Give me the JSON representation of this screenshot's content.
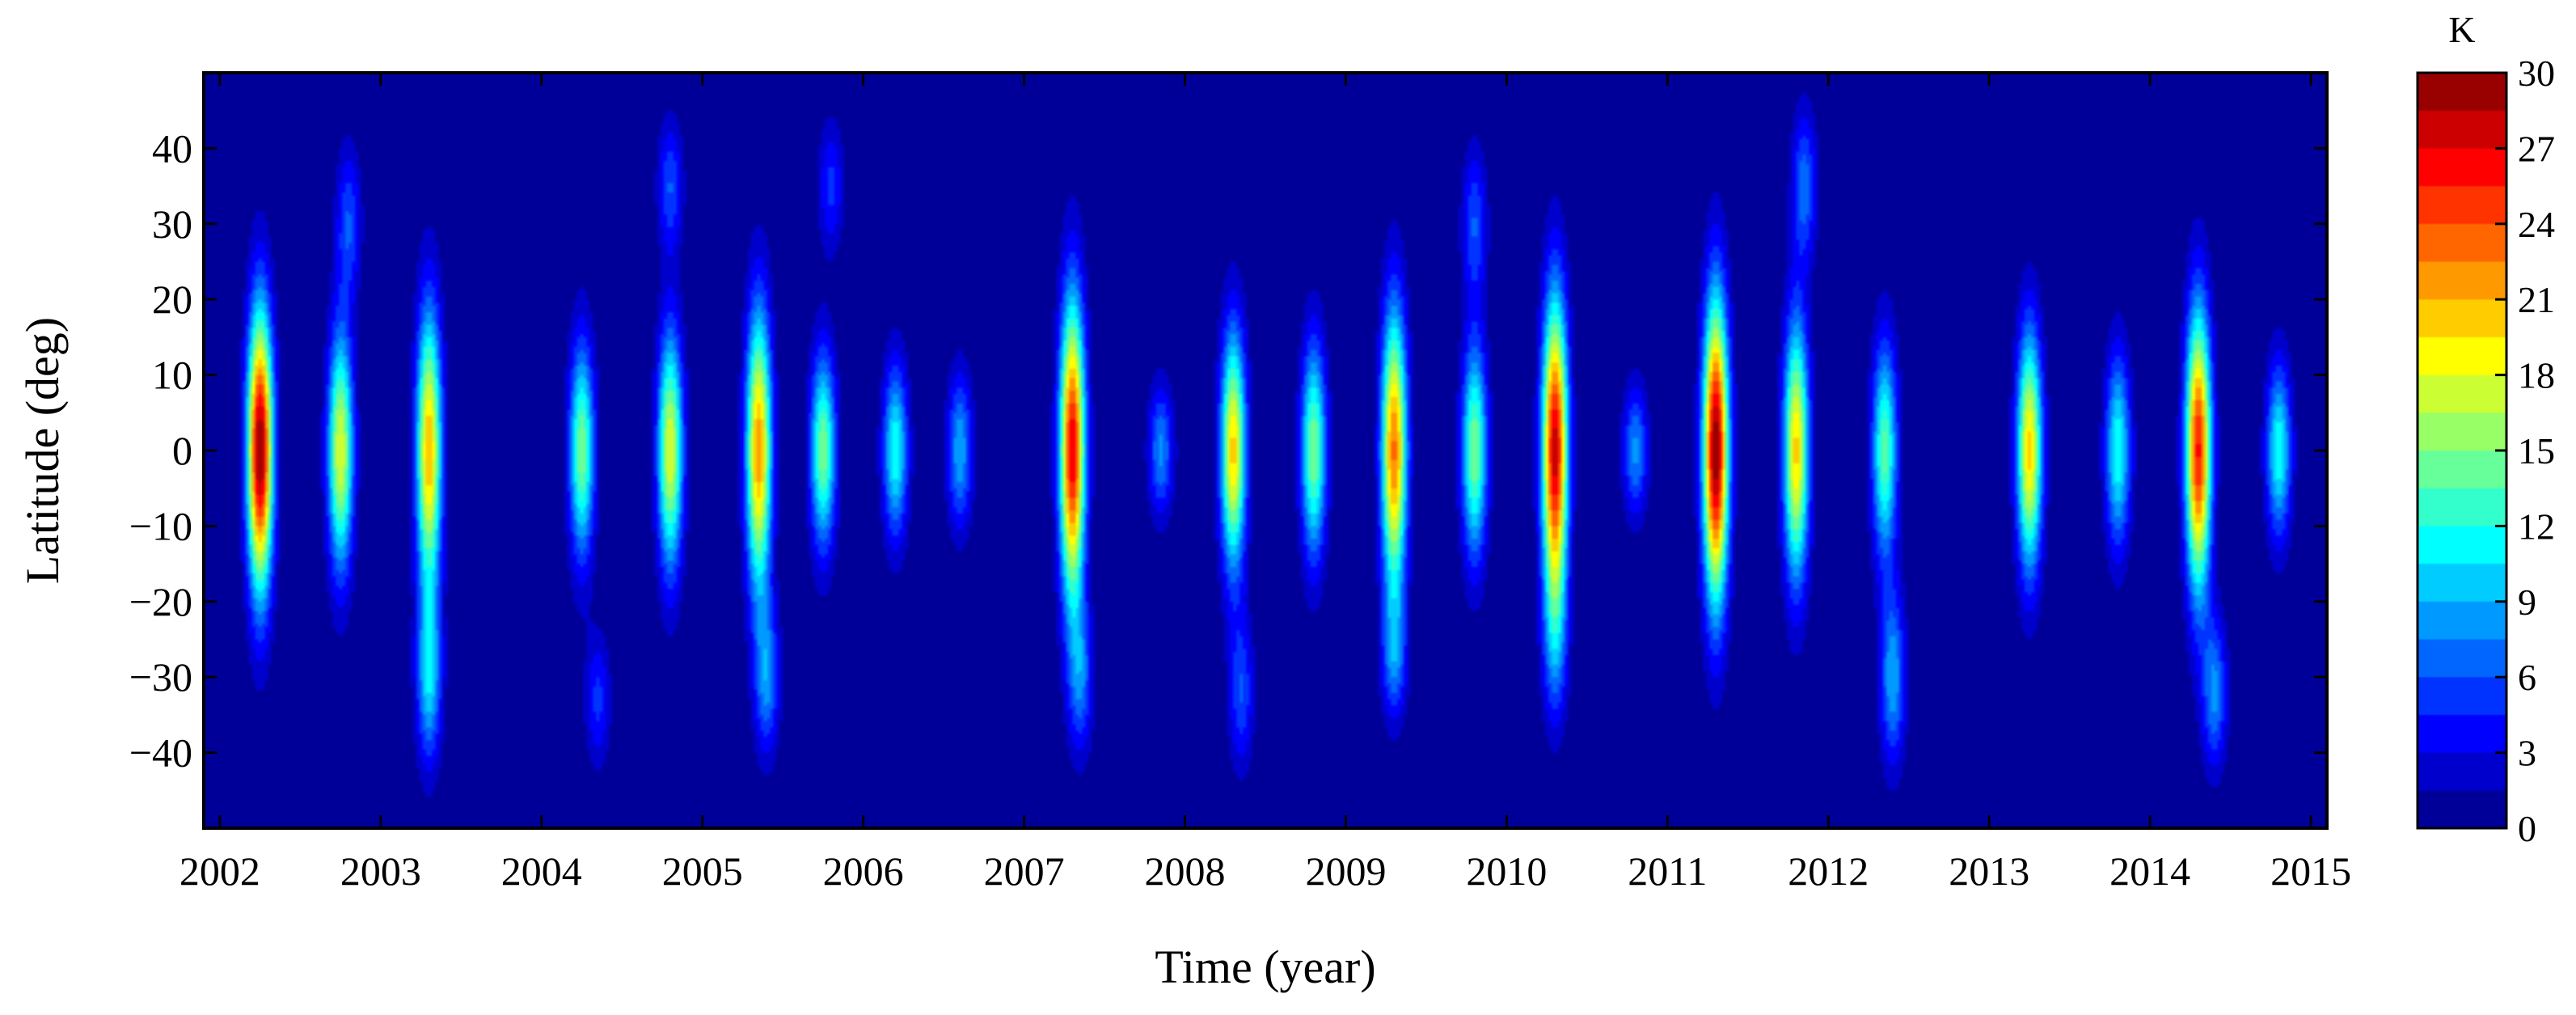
{
  "chart_data": {
    "type": "heatmap",
    "title": "",
    "xlabel": "Time (year)",
    "ylabel": "Latitude (deg)",
    "xlim": [
      2001.9,
      2015.1
    ],
    "ylim": [
      -50,
      50
    ],
    "xticks": [
      "2002",
      "2003",
      "2004",
      "2005",
      "2006",
      "2007",
      "2008",
      "2009",
      "2010",
      "2011",
      "2012",
      "2013",
      "2014",
      "2015"
    ],
    "yticks": [
      "40",
      "30",
      "20",
      "10",
      "0",
      "−10",
      "−20",
      "−30",
      "−40"
    ],
    "colorbar": {
      "label": "K",
      "range": [
        0,
        30
      ],
      "ticks": [
        "30",
        "27",
        "24",
        "21",
        "18",
        "15",
        "12",
        "9",
        "6",
        "3",
        "0"
      ],
      "colormap": "jet",
      "contour_step": 1.5
    },
    "peaks": [
      {
        "time": 2002.25,
        "lat": 0,
        "value": 30,
        "lat_halfwidth": 13
      },
      {
        "time": 2002.75,
        "lat": 0,
        "value": 18,
        "lat_halfwidth": 11
      },
      {
        "time": 2003.3,
        "lat": 0,
        "value": 21,
        "lat_halfwidth": 13
      },
      {
        "time": 2004.25,
        "lat": 0,
        "value": 15,
        "lat_halfwidth": 10
      },
      {
        "time": 2004.8,
        "lat": 0,
        "value": 18,
        "lat_halfwidth": 11
      },
      {
        "time": 2005.35,
        "lat": 0,
        "value": 22,
        "lat_halfwidth": 13
      },
      {
        "time": 2005.75,
        "lat": 0,
        "value": 15,
        "lat_halfwidth": 9
      },
      {
        "time": 2006.2,
        "lat": 0,
        "value": 12,
        "lat_halfwidth": 8
      },
      {
        "time": 2006.6,
        "lat": 0,
        "value": 9,
        "lat_halfwidth": 7
      },
      {
        "time": 2007.3,
        "lat": 0,
        "value": 27,
        "lat_halfwidth": 14
      },
      {
        "time": 2007.85,
        "lat": 0,
        "value": 8,
        "lat_halfwidth": 6
      },
      {
        "time": 2008.3,
        "lat": 0,
        "value": 20,
        "lat_halfwidth": 11
      },
      {
        "time": 2008.8,
        "lat": 0,
        "value": 15,
        "lat_halfwidth": 10
      },
      {
        "time": 2009.3,
        "lat": 0,
        "value": 23,
        "lat_halfwidth": 13
      },
      {
        "time": 2009.8,
        "lat": 0,
        "value": 15,
        "lat_halfwidth": 10
      },
      {
        "time": 2010.3,
        "lat": 0,
        "value": 28,
        "lat_halfwidth": 14
      },
      {
        "time": 2010.8,
        "lat": 0,
        "value": 8,
        "lat_halfwidth": 6
      },
      {
        "time": 2011.3,
        "lat": 0,
        "value": 30,
        "lat_halfwidth": 14
      },
      {
        "time": 2011.8,
        "lat": 0,
        "value": 20,
        "lat_halfwidth": 12
      },
      {
        "time": 2012.35,
        "lat": 0,
        "value": 14,
        "lat_halfwidth": 10
      },
      {
        "time": 2013.25,
        "lat": 0,
        "value": 20,
        "lat_halfwidth": 11
      },
      {
        "time": 2013.8,
        "lat": 0,
        "value": 12,
        "lat_halfwidth": 9
      },
      {
        "time": 2014.3,
        "lat": 0,
        "value": 26,
        "lat_halfwidth": 13
      },
      {
        "time": 2014.8,
        "lat": 0,
        "value": 12,
        "lat_halfwidth": 8
      },
      {
        "time": 2003.3,
        "lat": -30,
        "value": 10,
        "lat_halfwidth": 8
      },
      {
        "time": 2005.4,
        "lat": -30,
        "value": 8,
        "lat_halfwidth": 7
      },
      {
        "time": 2007.35,
        "lat": -30,
        "value": 7,
        "lat_halfwidth": 7
      },
      {
        "time": 2008.35,
        "lat": -32,
        "value": 6,
        "lat_halfwidth": 7
      },
      {
        "time": 2009.3,
        "lat": -27,
        "value": 7,
        "lat_halfwidth": 6
      },
      {
        "time": 2012.4,
        "lat": -30,
        "value": 9,
        "lat_halfwidth": 8
      },
      {
        "time": 2014.4,
        "lat": -32,
        "value": 8,
        "lat_halfwidth": 7
      },
      {
        "time": 2002.8,
        "lat": 30,
        "value": 6,
        "lat_halfwidth": 7
      },
      {
        "time": 2004.8,
        "lat": 35,
        "value": 6,
        "lat_halfwidth": 6
      },
      {
        "time": 2005.8,
        "lat": 35,
        "value": 5,
        "lat_halfwidth": 6
      },
      {
        "time": 2009.8,
        "lat": 30,
        "value": 6,
        "lat_halfwidth": 7
      },
      {
        "time": 2011.85,
        "lat": 35,
        "value": 7,
        "lat_halfwidth": 7
      },
      {
        "time": 2010.3,
        "lat": -25,
        "value": 6,
        "lat_halfwidth": 8
      },
      {
        "time": 2004.35,
        "lat": -33,
        "value": 5,
        "lat_halfwidth": 6
      }
    ]
  }
}
